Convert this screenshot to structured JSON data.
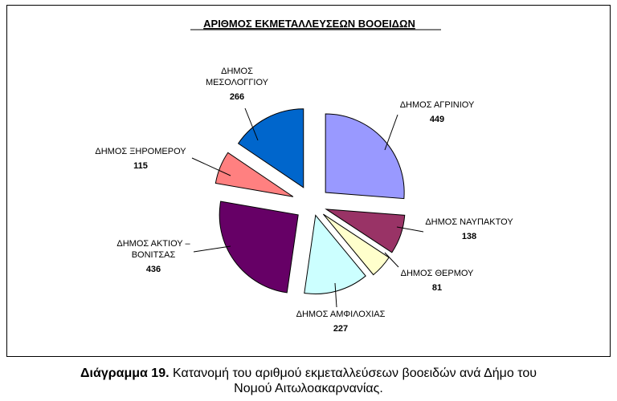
{
  "chart_data": {
    "type": "pie",
    "title": "ΑΡΙΘΜΟΣ ΕΚΜΕΤΑΛΛΕΥΣΕΩΝ ΒΟΟΕΙΔΩΝ",
    "slices": [
      {
        "label_lines": [
          "ΔΗΜΟΣ ΑΓΡΙΝΙΟΥ"
        ],
        "value": 449,
        "color": "#9999ff"
      },
      {
        "label_lines": [
          "ΔΗΜΟΣ ΝΑΥΠΑΚΤΟΥ"
        ],
        "value": 138,
        "color": "#993366"
      },
      {
        "label_lines": [
          "ΔΗΜΟΣ ΘΕΡΜΟΥ"
        ],
        "value": 81,
        "color": "#ffffcc"
      },
      {
        "label_lines": [
          "ΔΗΜΟΣ ΑΜΦΙΛΟΧΙΑΣ"
        ],
        "value": 227,
        "color": "#ccffff"
      },
      {
        "label_lines": [
          "ΔΗΜΟΣ ΑΚΤΙΟΥ –",
          "ΒΟΝΙΤΣΑΣ"
        ],
        "value": 436,
        "color": "#660066"
      },
      {
        "label_lines": [
          "ΔΗΜΟΣ ΞΗΡΟΜΕΡΟΥ"
        ],
        "value": 115,
        "color": "#ff8080"
      },
      {
        "label_lines": [
          "ΔΗΜΟΣ",
          "ΜΕΣΟΛΟΓΓΙΟΥ"
        ],
        "value": 266,
        "color": "#0066cc"
      }
    ]
  },
  "caption": {
    "prefix": "Διάγραμμα 19.",
    "text": " Κατανομή του αριθμού εκμεταλλεύσεων βοοειδών ανά Δήμο του",
    "line2": "Νομού Αιτωλοακαρνανίας."
  }
}
